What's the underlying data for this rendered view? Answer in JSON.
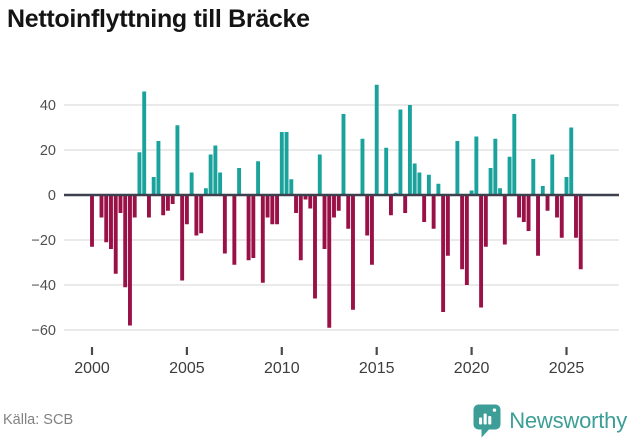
{
  "header": {
    "title": "Nettoinflyttning till Bräcke"
  },
  "chart_data": {
    "type": "bar",
    "title": "Nettoinflyttning till Bräcke",
    "start_year": 2000,
    "periods_per_year": 4,
    "values": [
      -23,
      0,
      -10,
      -21,
      -24,
      -35,
      -8,
      -41,
      -58,
      -10,
      19,
      46,
      -10,
      8,
      24,
      -9,
      -7,
      -4,
      31,
      -38,
      -13,
      10,
      -18,
      -17,
      3,
      18,
      22,
      10,
      -26,
      0,
      -31,
      12,
      0,
      -29,
      -28,
      15,
      -39,
      -10,
      -13,
      -13,
      28,
      28,
      7,
      -8,
      -29,
      -2,
      -6,
      -46,
      18,
      -24,
      -59,
      -10,
      -7,
      36,
      -15,
      -51,
      0,
      25,
      -18,
      -31,
      49,
      0,
      21,
      -9,
      1,
      38,
      -8,
      40,
      14,
      10,
      -12,
      9,
      -15,
      5,
      -52,
      -27,
      0,
      24,
      -33,
      -40,
      2,
      26,
      -50,
      -23,
      12,
      25,
      3,
      -22,
      17,
      36,
      -10,
      -12,
      -16,
      16,
      -27,
      4,
      -7,
      18,
      -10,
      -19,
      8,
      30,
      -19,
      -33
    ],
    "yticks": [
      40,
      20,
      0,
      -20,
      -40,
      -60
    ],
    "ylim": [
      -62,
      50
    ],
    "xticks": [
      2000,
      2005,
      2010,
      2015,
      2020,
      2025
    ],
    "colors": {
      "positive": "#1AA39C",
      "negative": "#9A1147"
    },
    "grid": "horizontal",
    "legend": "none"
  },
  "footer": {
    "source": "Källa: SCB",
    "brand": "Newsworthy",
    "brand_color": "#3C9E97"
  }
}
